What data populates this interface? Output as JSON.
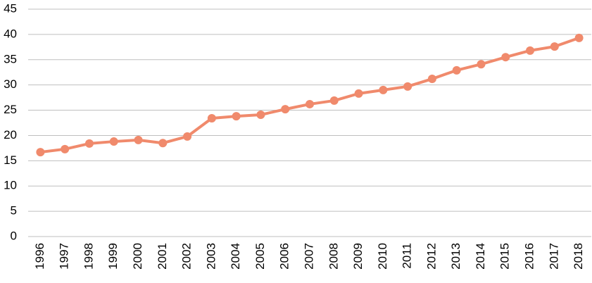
{
  "chart_data": {
    "type": "line",
    "categories": [
      "1996",
      "1997",
      "1998",
      "1999",
      "2000",
      "2001",
      "2002",
      "2003",
      "2004",
      "2005",
      "2006",
      "2007",
      "2008",
      "2009",
      "2010",
      "2011",
      "2012",
      "2013",
      "2014",
      "2015",
      "2016",
      "2017",
      "2018"
    ],
    "series": [
      {
        "color": "#f08a6c",
        "values": [
          16.7,
          17.3,
          18.4,
          18.8,
          19.1,
          18.5,
          19.8,
          23.4,
          23.8,
          24.1,
          25.2,
          26.2,
          26.9,
          28.3,
          29.0,
          29.7,
          31.2,
          32.9,
          34.1,
          35.5,
          36.8,
          37.6,
          39.3
        ]
      }
    ],
    "ylim": [
      0,
      45
    ],
    "yticks": [
      0,
      5,
      10,
      15,
      20,
      25,
      30,
      35,
      40,
      45
    ],
    "grid": true
  }
}
